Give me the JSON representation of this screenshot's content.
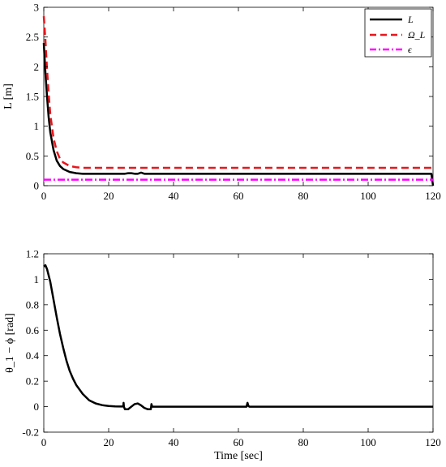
{
  "chart_data": [
    {
      "type": "line",
      "ylabel": "L [m]",
      "xlabel": "",
      "xlim": [
        0,
        120
      ],
      "ylim": [
        0,
        3
      ],
      "xticks": [
        0,
        20,
        40,
        60,
        80,
        100,
        120
      ],
      "yticks": [
        0,
        0.5,
        1,
        1.5,
        2,
        2.5,
        3
      ],
      "ytick_labels": [
        "0",
        "0.5",
        "1",
        "1.5",
        "2",
        "2.5",
        "3"
      ],
      "legend_position": "top-right",
      "grid": false,
      "series": [
        {
          "name": "L",
          "color": "#000000",
          "style": "solid",
          "x": [
            0,
            0.5,
            1,
            1.5,
            2,
            3,
            4,
            5,
            6,
            8,
            10,
            12,
            15,
            20,
            25,
            26,
            27,
            28,
            29,
            30,
            31,
            32,
            33,
            35,
            40,
            60,
            80,
            100,
            119.5,
            120
          ],
          "y": [
            2.4,
            1.9,
            1.5,
            1.15,
            0.9,
            0.6,
            0.42,
            0.33,
            0.28,
            0.23,
            0.21,
            0.2,
            0.2,
            0.2,
            0.2,
            0.21,
            0.21,
            0.2,
            0.2,
            0.22,
            0.2,
            0.2,
            0.2,
            0.2,
            0.2,
            0.2,
            0.2,
            0.2,
            0.2,
            0.0
          ]
        },
        {
          "name": "Ω_L",
          "color": "#e8161c",
          "style": "dashed",
          "x": [
            0,
            0.5,
            1,
            1.5,
            2,
            3,
            4,
            5,
            6,
            8,
            10,
            12,
            15,
            20,
            40,
            60,
            80,
            100,
            120
          ],
          "y": [
            2.85,
            2.45,
            1.95,
            1.55,
            1.2,
            0.8,
            0.58,
            0.45,
            0.39,
            0.33,
            0.31,
            0.3,
            0.3,
            0.3,
            0.3,
            0.3,
            0.3,
            0.3,
            0.3
          ]
        },
        {
          "name": "ϵ",
          "color": "#ff00ff",
          "style": "dashdot",
          "x": [
            0,
            120
          ],
          "y": [
            0.1,
            0.1
          ]
        }
      ]
    },
    {
      "type": "line",
      "ylabel": "θ_1 − ϕ [rad]",
      "xlabel": "Time [sec]",
      "xlim": [
        0,
        120
      ],
      "ylim": [
        -0.2,
        1.2
      ],
      "xticks": [
        0,
        20,
        40,
        60,
        80,
        100,
        120
      ],
      "yticks": [
        -0.2,
        0,
        0.2,
        0.4,
        0.6,
        0.8,
        1,
        1.2
      ],
      "ytick_labels": [
        "-0.2",
        "0",
        "0.2",
        "0.4",
        "0.6",
        "0.8",
        "1",
        "1.2"
      ],
      "grid": false,
      "series": [
        {
          "color": "#000000",
          "style": "solid",
          "x": [
            0,
            0.5,
            1,
            2,
            3,
            4,
            5,
            6,
            7,
            8,
            9,
            10,
            12,
            14,
            16,
            18,
            20,
            22,
            24,
            24.5,
            24.6,
            24.7,
            25,
            26,
            27,
            28,
            29,
            30,
            31,
            32,
            33,
            33.2,
            33.4,
            33.6,
            34,
            40,
            50,
            60,
            62.5,
            62.8,
            63.1,
            63.4,
            64,
            80,
            100,
            120
          ],
          "y": [
            1.1,
            1.11,
            1.08,
            0.98,
            0.84,
            0.7,
            0.57,
            0.46,
            0.36,
            0.28,
            0.22,
            0.17,
            0.1,
            0.05,
            0.025,
            0.012,
            0.005,
            0.002,
            0.001,
            0.001,
            0.03,
            0.0,
            -0.02,
            -0.02,
            0.0,
            0.02,
            0.025,
            0.01,
            -0.01,
            -0.02,
            -0.02,
            0.02,
            0.0,
            0.0,
            0.0,
            0.0,
            0.0,
            0.0,
            0.0,
            0.03,
            0.005,
            0.0,
            0.0,
            0.0,
            0.0,
            0.0
          ]
        }
      ]
    }
  ]
}
